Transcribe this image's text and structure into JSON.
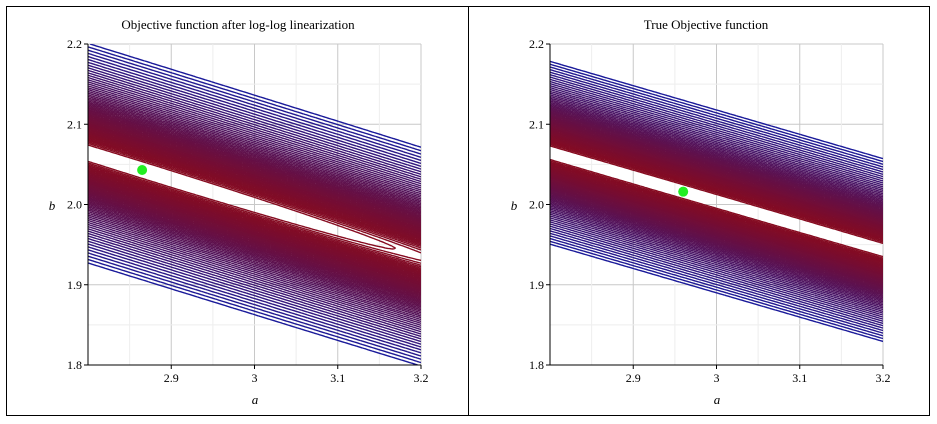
{
  "chart_data": [
    {
      "type": "contour",
      "title": "Objective function after log-log linearization",
      "xlabel": "a",
      "ylabel": "b",
      "xlim": [
        2.8,
        3.2
      ],
      "ylim": [
        1.8,
        2.2
      ],
      "xticks": [
        "2.9",
        "3",
        "3.1",
        "3.2"
      ],
      "yticks": [
        "1.8",
        "1.9",
        "2.0",
        "2.1",
        "2.2"
      ],
      "grid": true,
      "minimum_point": {
        "a": 2.865,
        "b": 2.043
      },
      "innermost_contour_tip": {
        "a": 3.16,
        "b": 1.955
      },
      "contour_color_low": "#8b0a1a",
      "contour_color_high": "#1a1a9a",
      "marker_color": "#22ee22"
    },
    {
      "type": "contour",
      "title": "True Objective function",
      "xlabel": "a",
      "ylabel": "b",
      "xlim": [
        2.8,
        3.2
      ],
      "ylim": [
        1.8,
        2.2
      ],
      "xticks": [
        "2.9",
        "3",
        "3.1",
        "3.2"
      ],
      "yticks": [
        "1.8",
        "1.9",
        "2.0",
        "2.1",
        "2.2"
      ],
      "grid": true,
      "minimum_point": {
        "a": 2.96,
        "b": 2.016
      },
      "contour_color_low": "#8b0a1a",
      "contour_color_high": "#1a1a9a",
      "marker_color": "#22ee22"
    }
  ]
}
